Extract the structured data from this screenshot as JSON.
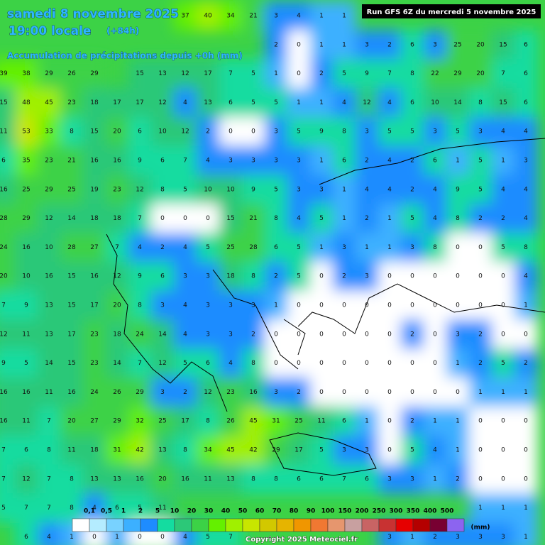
{
  "header": {
    "date": "samedi 8 novembre 2025",
    "time": "19:00 locale",
    "lead": "(+84h)",
    "subtitle": "Accumulation de précipitations depuis +0h (mm)",
    "run": "Run GFS 6Z du mercredi 5 novembre 2025"
  },
  "grid": {
    "rows": [
      [
        null,
        null,
        null,
        null,
        null,
        null,
        null,
        null,
        37,
        40,
        34,
        21,
        3,
        4,
        1,
        1,
        null,
        null,
        null,
        null,
        null,
        null,
        null,
        null
      ],
      [
        null,
        null,
        null,
        null,
        null,
        null,
        null,
        null,
        null,
        null,
        null,
        null,
        2,
        0,
        1,
        1,
        3,
        2,
        6,
        3,
        25,
        20,
        15,
        6
      ],
      [
        39,
        38,
        29,
        26,
        29,
        null,
        15,
        13,
        12,
        17,
        7,
        5,
        1,
        0,
        2,
        5,
        9,
        7,
        8,
        22,
        29,
        20,
        7,
        6
      ],
      [
        15,
        48,
        45,
        23,
        18,
        17,
        17,
        12,
        4,
        13,
        6,
        5,
        5,
        1,
        1,
        4,
        12,
        4,
        6,
        10,
        14,
        8,
        15,
        6
      ],
      [
        11,
        53,
        33,
        8,
        15,
        20,
        6,
        10,
        12,
        2,
        0,
        0,
        3,
        5,
        9,
        8,
        3,
        5,
        5,
        3,
        5,
        3,
        4,
        4
      ],
      [
        6,
        35,
        23,
        21,
        16,
        16,
        9,
        6,
        7,
        4,
        3,
        3,
        3,
        3,
        1,
        6,
        2,
        4,
        2,
        6,
        1,
        5,
        1,
        3
      ],
      [
        16,
        25,
        29,
        25,
        19,
        23,
        12,
        8,
        5,
        10,
        10,
        9,
        5,
        3,
        3,
        1,
        4,
        4,
        2,
        4,
        9,
        5,
        4,
        4
      ],
      [
        28,
        29,
        12,
        14,
        18,
        18,
        7,
        0,
        0,
        0,
        15,
        21,
        8,
        4,
        5,
        1,
        2,
        1,
        5,
        4,
        8,
        2,
        2,
        4
      ],
      [
        24,
        16,
        10,
        28,
        27,
        7,
        4,
        2,
        4,
        5,
        25,
        28,
        6,
        5,
        1,
        3,
        1,
        1,
        3,
        8,
        0,
        0,
        5,
        8
      ],
      [
        20,
        10,
        16,
        15,
        16,
        12,
        9,
        6,
        3,
        3,
        18,
        8,
        2,
        5,
        0,
        2,
        3,
        0,
        0,
        0,
        0,
        0,
        0,
        4
      ],
      [
        7,
        9,
        13,
        15,
        17,
        20,
        8,
        3,
        4,
        3,
        3,
        3,
        1,
        0,
        0,
        0,
        0,
        0,
        0,
        0,
        0,
        0,
        0,
        1
      ],
      [
        12,
        11,
        13,
        17,
        23,
        18,
        24,
        14,
        4,
        3,
        3,
        2,
        0,
        0,
        0,
        0,
        0,
        0,
        2,
        0,
        3,
        2,
        0,
        0
      ],
      [
        9,
        5,
        14,
        15,
        23,
        14,
        7,
        12,
        5,
        6,
        4,
        8,
        0,
        0,
        0,
        0,
        0,
        0,
        0,
        0,
        1,
        2,
        5,
        2
      ],
      [
        16,
        16,
        11,
        16,
        24,
        26,
        29,
        3,
        2,
        12,
        23,
        16,
        3,
        2,
        0,
        0,
        0,
        0,
        0,
        0,
        0,
        1,
        1,
        1
      ],
      [
        16,
        11,
        7,
        20,
        27,
        29,
        32,
        25,
        17,
        8,
        26,
        45,
        31,
        25,
        11,
        6,
        1,
        0,
        2,
        1,
        1,
        0,
        0,
        0
      ],
      [
        7,
        6,
        8,
        11,
        18,
        31,
        42,
        13,
        8,
        34,
        45,
        42,
        29,
        17,
        5,
        3,
        3,
        0,
        5,
        4,
        1,
        0,
        0,
        0
      ],
      [
        7,
        12,
        7,
        8,
        13,
        13,
        16,
        20,
        16,
        11,
        13,
        8,
        8,
        6,
        6,
        7,
        6,
        3,
        3,
        1,
        2,
        0,
        0,
        0
      ],
      [
        5,
        7,
        7,
        8,
        4,
        6,
        5,
        11,
        null,
        null,
        null,
        null,
        null,
        null,
        null,
        null,
        null,
        null,
        null,
        null,
        null,
        1,
        1,
        1
      ],
      [
        null,
        6,
        4,
        1,
        0,
        1,
        0,
        0,
        4,
        5,
        7,
        null,
        null,
        null,
        null,
        null,
        null,
        3,
        1,
        2,
        3,
        3,
        3,
        1
      ]
    ]
  },
  "legend": {
    "ticks": [
      {
        "value": 0.1,
        "label": "0,1"
      },
      {
        "value": 0.5,
        "label": "0,5"
      },
      1,
      2,
      5,
      10,
      20,
      30,
      40,
      50,
      60,
      70,
      80,
      90,
      100,
      150,
      200,
      250,
      300,
      350,
      400,
      500
    ],
    "colors": [
      "#ffffff",
      "#b4ecff",
      "#78d2ff",
      "#3cb0ff",
      "#1e8cff",
      "#14dca0",
      "#2cc878",
      "#3cd246",
      "#64f000",
      "#a0f000",
      "#c8e600",
      "#d2c800",
      "#e6b400",
      "#f09600",
      "#f07832",
      "#e6966e",
      "#c8a0a0",
      "#c86464",
      "#c83232",
      "#e60000",
      "#b40000",
      "#780032",
      "#8c64f0"
    ],
    "unit": "(mm)"
  },
  "footer": {
    "copyright": "Copyright 2025 Meteociel.fr"
  }
}
